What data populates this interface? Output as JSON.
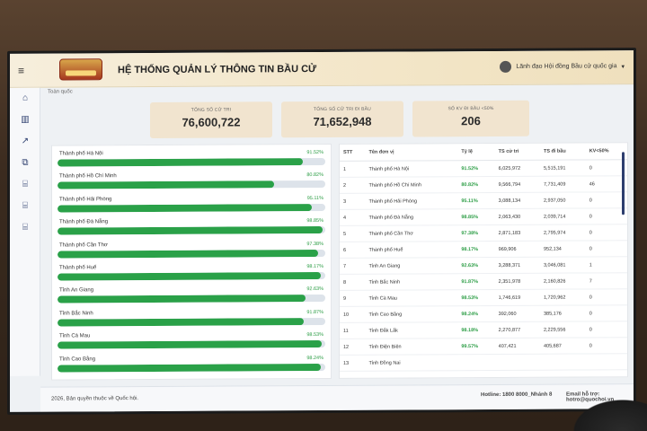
{
  "app": {
    "title": "HỆ THỐNG QUẢN LÝ THÔNG TIN BẦU CỬ",
    "user_label": "Lãnh đạo Hội đồng Bầu cử quốc gia",
    "breadcrumb": "Toàn quốc"
  },
  "sidebar": {
    "items": [
      {
        "icon": "home-icon",
        "glyph": "⌂"
      },
      {
        "icon": "bar-chart-icon",
        "glyph": "▥"
      },
      {
        "icon": "line-chart-icon",
        "glyph": "↗"
      },
      {
        "icon": "org-chart-icon",
        "glyph": "⧉"
      },
      {
        "icon": "institution-icon",
        "glyph": "⌸"
      },
      {
        "icon": "institution-icon",
        "glyph": "⌸"
      },
      {
        "icon": "institution-icon",
        "glyph": "⌸"
      }
    ]
  },
  "summary": {
    "total_voters_label": "TỔNG SỐ CỬ TRI",
    "total_voters": "76,600,722",
    "total_voted_label": "TỔNG SỐ CỬ TRI ĐI BẦU",
    "total_voted": "71,652,948",
    "kv_label": "SỐ KV ĐI BẦU <50%",
    "kv_value": "206"
  },
  "bars": [
    {
      "name": "Thành phố Hà Nội",
      "pct_label": "91.52%",
      "pct": 91.52
    },
    {
      "name": "Thành phố Hồ Chí Minh",
      "pct_label": "80.82%",
      "pct": 80.82
    },
    {
      "name": "Thành phố Hải Phòng",
      "pct_label": "95.11%",
      "pct": 95.11
    },
    {
      "name": "Thành phố Đà Nẵng",
      "pct_label": "98.85%",
      "pct": 98.85
    },
    {
      "name": "Thành phố Cần Thơ",
      "pct_label": "97.38%",
      "pct": 97.38
    },
    {
      "name": "Thành phố Huế",
      "pct_label": "98.17%",
      "pct": 98.17
    },
    {
      "name": "Tỉnh An Giang",
      "pct_label": "92.63%",
      "pct": 92.63
    },
    {
      "name": "Tỉnh Bắc Ninh",
      "pct_label": "91.87%",
      "pct": 91.87
    },
    {
      "name": "Tỉnh Cà Mau",
      "pct_label": "98.53%",
      "pct": 98.53
    },
    {
      "name": "Tỉnh Cao Bằng",
      "pct_label": "98.24%",
      "pct": 98.24
    }
  ],
  "table": {
    "headers": [
      "STT",
      "Tên đơn vị",
      "Tỷ lệ",
      "TS cử tri",
      "TS đi bầu",
      "KV<50%"
    ],
    "rows": [
      [
        "1",
        "Thành phố Hà Nội",
        "91.52%",
        "6,025,972",
        "5,515,191",
        "0"
      ],
      [
        "2",
        "Thành phố Hồ Chí Minh",
        "80.82%",
        "9,566,794",
        "7,731,409",
        "46"
      ],
      [
        "3",
        "Thành phố Hải Phòng",
        "95.11%",
        "3,088,134",
        "2,937,050",
        "0"
      ],
      [
        "4",
        "Thành phố Đà Nẵng",
        "98.85%",
        "2,063,430",
        "2,039,714",
        "0"
      ],
      [
        "5",
        "Thành phố Cần Thơ",
        "97.38%",
        "2,871,183",
        "2,795,974",
        "0"
      ],
      [
        "6",
        "Thành phố Huế",
        "98.17%",
        "969,906",
        "952,134",
        "0"
      ],
      [
        "7",
        "Tỉnh An Giang",
        "92.63%",
        "3,288,371",
        "3,046,081",
        "1"
      ],
      [
        "8",
        "Tỉnh Bắc Ninh",
        "91.87%",
        "2,351,978",
        "2,160,826",
        "7"
      ],
      [
        "9",
        "Tỉnh Cà Mau",
        "98.53%",
        "1,746,619",
        "1,720,962",
        "0"
      ],
      [
        "10",
        "Tỉnh Cao Bằng",
        "98.24%",
        "392,060",
        "385,176",
        "0"
      ],
      [
        "11",
        "Tỉnh Đắk Lắk",
        "98.18%",
        "2,270,877",
        "2,229,556",
        "0"
      ],
      [
        "12",
        "Tỉnh Điện Biên",
        "99.57%",
        "407,421",
        "405,687",
        "0"
      ],
      [
        "13",
        "Tỉnh Đồng Nai",
        "",
        "",
        "",
        ""
      ]
    ]
  },
  "footer": {
    "copyright": "2026, Bản quyền thuộc về Quốc hội.",
    "hotline": "Hotline: 1800 8000_Nhánh 8",
    "email": "Email hỗ trợ: hotro@quochoi.vn"
  },
  "colors": {
    "accent": "#2aa148",
    "nav": "#2d3e6e"
  }
}
